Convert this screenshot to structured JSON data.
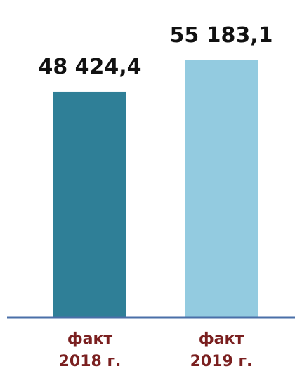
{
  "chart_data": {
    "type": "bar",
    "categories": [
      {
        "line1": "факт",
        "line2": "2018 г."
      },
      {
        "line1": "факт",
        "line2": "2019 г."
      }
    ],
    "values": [
      48424.4,
      55183.1
    ],
    "value_labels": [
      "48 424,4",
      "55 183,1"
    ],
    "colors": [
      "#2f7f97",
      "#93cbe0"
    ],
    "axis_color": "#4a6fa8",
    "label_color": "#7a1f1f",
    "ylim": [
      0,
      55183.1
    ],
    "grid": false,
    "legend": "none"
  }
}
